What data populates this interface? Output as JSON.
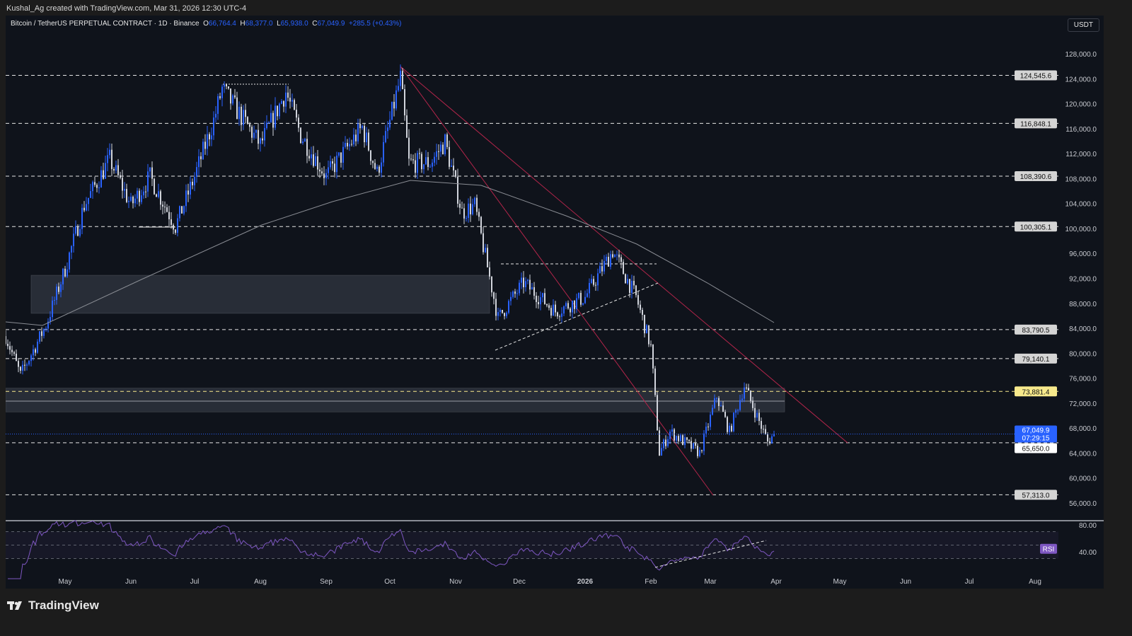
{
  "credit": "Kushal_Ag created with TradingView.com, Mar 31, 2026 12:30 UTC-4",
  "legend": {
    "symbol": "Bitcoin / TetherUS PERPETUAL CONTRACT · 1D · Binance",
    "o_label": "O",
    "o": "66,764.4",
    "h_label": "H",
    "h": "68,377.0",
    "l_label": "L",
    "l": "65,938.0",
    "c_label": "C",
    "c": "67,049.9",
    "change": "+285.5 (+0.43%)"
  },
  "currency": "USDT",
  "brand": "TradingView",
  "colors": {
    "up": "#2962ff",
    "down": "#d1d4dc",
    "background": "#0f131b",
    "trendline": "#b2254a",
    "highlight_level": "#f7e98c",
    "ma": "#8a8d94",
    "rsi": "#7e57c2"
  },
  "chart_data": {
    "type": "candlestick",
    "timeframe": "1D",
    "ylim": [
      56000,
      128000
    ],
    "y_ticks": [
      "128,000.0",
      "124,000.0",
      "120,000.0",
      "116,000.0",
      "112,000.0",
      "108,000.0",
      "104,000.0",
      "100,000.0",
      "96,000.0",
      "92,000.0",
      "88,000.0",
      "84,000.0",
      "80,000.0",
      "76,000.0",
      "72,000.0",
      "68,000.0",
      "64,000.0",
      "60,000.0",
      "56,000.0"
    ],
    "x_ticks": [
      "May",
      "Jun",
      "Jul",
      "Aug",
      "Sep",
      "Oct",
      "Nov",
      "Dec",
      "2026",
      "Feb",
      "Mar",
      "Apr",
      "May",
      "Jun",
      "Jul",
      "Aug"
    ],
    "price_path": [
      [
        "2025-04-03",
        82750
      ],
      [
        "2025-04-10",
        76500
      ],
      [
        "2025-04-22",
        84500
      ],
      [
        "2025-05-01",
        93500
      ],
      [
        "2025-05-10",
        103700
      ],
      [
        "2025-05-22",
        111100
      ],
      [
        "2025-06-01",
        103700
      ],
      [
        "2025-06-10",
        108300
      ],
      [
        "2025-06-22",
        100300
      ],
      [
        "2025-07-01",
        108300
      ],
      [
        "2025-07-10",
        117300
      ],
      [
        "2025-07-14",
        122400
      ],
      [
        "2025-08-01",
        113400
      ],
      [
        "2025-08-13",
        121900
      ],
      [
        "2025-08-20",
        115000
      ],
      [
        "2025-09-01",
        108300
      ],
      [
        "2025-09-18",
        116200
      ],
      [
        "2025-09-25",
        108800
      ],
      [
        "2025-10-06",
        124100
      ],
      [
        "2025-10-10",
        110500
      ],
      [
        "2025-10-20",
        110500
      ],
      [
        "2025-10-27",
        113900
      ],
      [
        "2025-11-04",
        102600
      ],
      [
        "2025-11-10",
        103700
      ],
      [
        "2025-11-21",
        85600
      ],
      [
        "2025-12-03",
        91300
      ],
      [
        "2025-12-18",
        86700
      ],
      [
        "2026-01-01",
        89000
      ],
      [
        "2026-01-14",
        96400
      ],
      [
        "2026-01-25",
        89000
      ],
      [
        "2026-02-01",
        81000
      ],
      [
        "2026-02-05",
        64000
      ],
      [
        "2026-02-10",
        67400
      ],
      [
        "2026-02-24",
        64000
      ],
      [
        "2026-03-04",
        73100
      ],
      [
        "2026-03-10",
        67400
      ],
      [
        "2026-03-17",
        74800
      ],
      [
        "2026-03-28",
        65800
      ],
      [
        "2026-03-31",
        67049.9
      ]
    ],
    "levels": [
      {
        "price": 124545.6,
        "label": "124,545.6"
      },
      {
        "price": 116848.1,
        "label": "116,848.1"
      },
      {
        "price": 108390.6,
        "label": "108,390.6"
      },
      {
        "price": 100305.1,
        "label": "100,305.1"
      },
      {
        "price": 83790.5,
        "label": "83,790.5"
      },
      {
        "price": 79140.1,
        "label": "79,140.1"
      },
      {
        "price": 73881.4,
        "label": "73,881.4",
        "highlight": true
      },
      {
        "price": 65650.0,
        "label": "65,650.0",
        "white": true
      },
      {
        "price": 57313.0,
        "label": "57,313.0"
      }
    ],
    "last_price": {
      "label": "67,049.9",
      "countdown": "07:29:15",
      "price": 67049.9
    },
    "zones": [
      {
        "from": "2025-04-15",
        "to": "2025-11-17",
        "low": 86400,
        "high": 92500
      },
      {
        "from": "2025-04-03",
        "to": "2026-04-05",
        "low": 70600,
        "high": 74400
      }
    ],
    "moving_average": "200-day SMA",
    "rsi": {
      "label": "RSI",
      "ticks": [
        "80.00",
        "40.00"
      ],
      "period": 14
    }
  }
}
